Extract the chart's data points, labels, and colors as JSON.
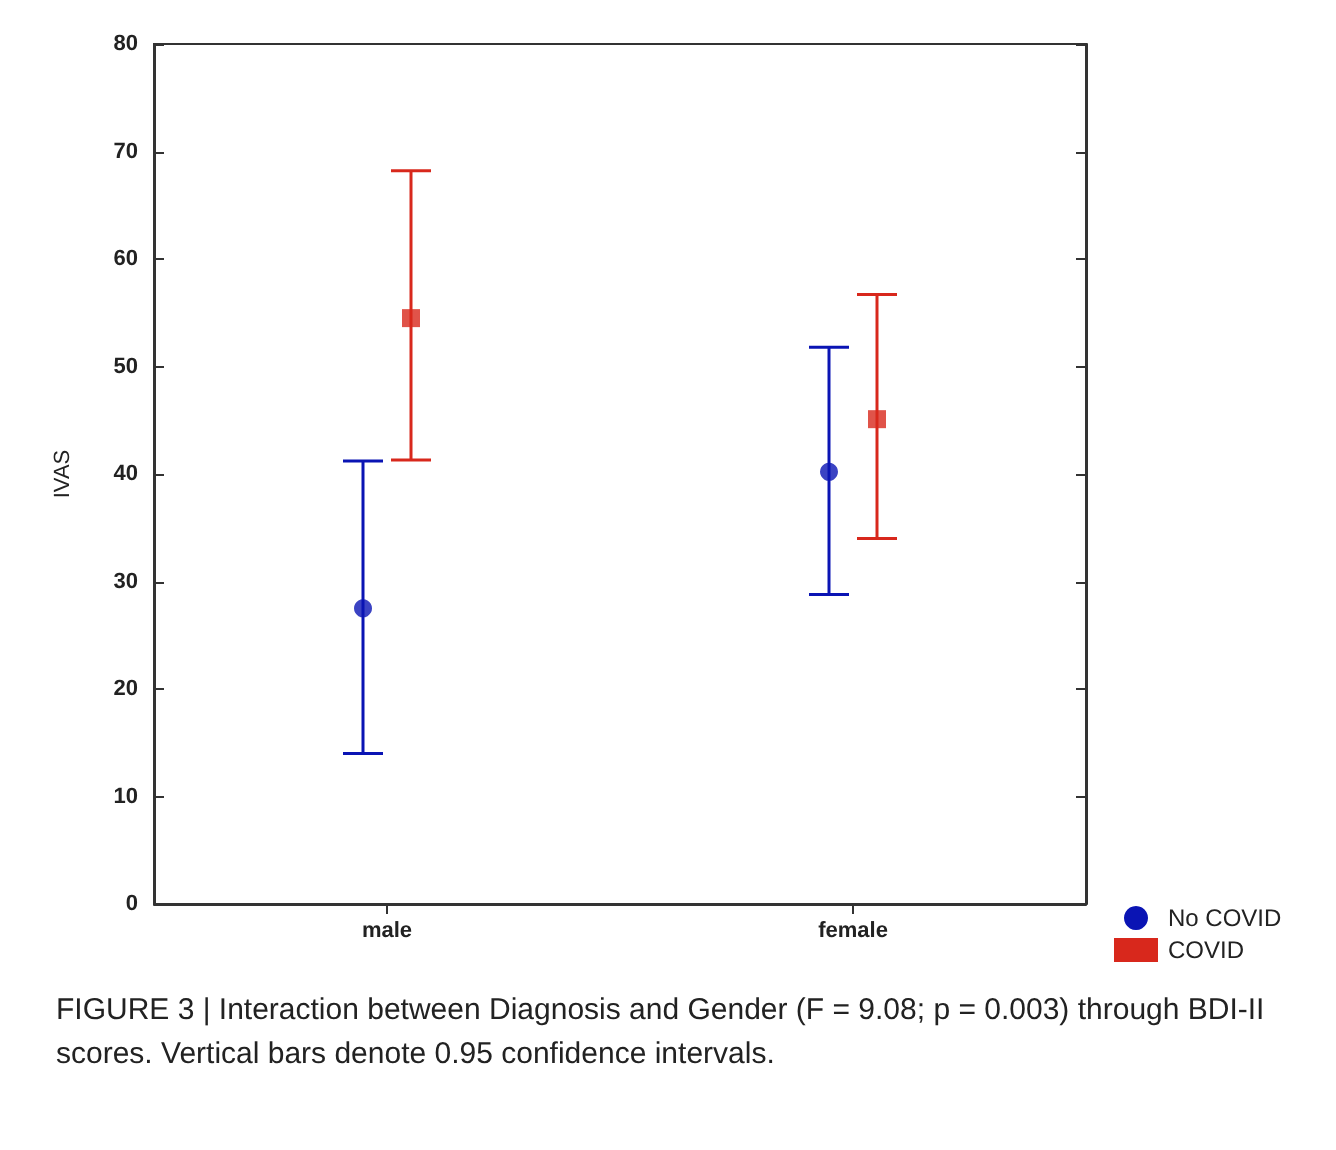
{
  "chart_data": {
    "type": "scatter",
    "ylabel": "IVAS",
    "categories": [
      "male",
      "female"
    ],
    "series": [
      {
        "name": "No COVID",
        "color": "#0a14b4",
        "marker": "circle",
        "values": [
          27.5,
          40.2
        ],
        "errors": [
          [
            14,
            41.2
          ],
          [
            28.8,
            51.8
          ]
        ]
      },
      {
        "name": "COVID",
        "color": "#d8281c",
        "marker": "square",
        "values": [
          54.5,
          45.1
        ],
        "errors": [
          [
            41.3,
            68.2
          ],
          [
            34,
            56.7
          ]
        ]
      }
    ],
    "ylim": [
      0,
      80
    ],
    "yticks": [
      0,
      10,
      20,
      30,
      40,
      50,
      60,
      70,
      80
    ],
    "grid": false,
    "legend": "bottom right",
    "annotations": [
      "FIGURE 3 | Interaction between Diagnosis and Gender (F = 9.08; p = 0.003) through BDI-II scores. Vertical bars denote 0.95 confidence intervals."
    ]
  }
}
